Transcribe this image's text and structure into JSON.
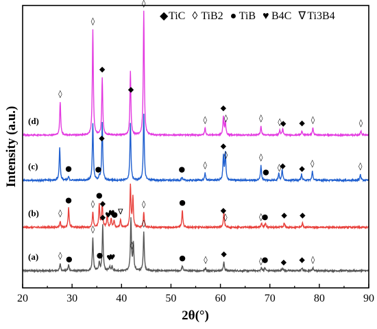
{
  "chart_data": {
    "type": "line",
    "xlabel": "2θ(°)",
    "ylabel": "Intensity (a.u.)",
    "xlim": [
      20,
      90
    ],
    "x_ticks": [
      "20",
      "30",
      "40",
      "50",
      "60",
      "70",
      "80",
      "90"
    ],
    "y_ticks_visible": false,
    "legend": {
      "placement": "top-right",
      "entries": [
        {
          "symbol": "◆",
          "label": "TiC",
          "phase": "tic"
        },
        {
          "symbol": "◊",
          "label": "TiB2",
          "phase": "tib2"
        },
        {
          "symbol": "●",
          "label": "TiB",
          "phase": "tib"
        },
        {
          "symbol": "♥",
          "label": "B4C",
          "phase": "b4c"
        },
        {
          "symbol": "∇",
          "label": "Ti3B4",
          "phase": "ti3b4"
        }
      ]
    },
    "series": [
      {
        "label": "(a)",
        "color": "#555555",
        "baseline": 0.0,
        "noise": 0.025,
        "peaks": [
          [
            27.6,
            0.12
          ],
          [
            29.3,
            0.1
          ],
          [
            34.2,
            0.55
          ],
          [
            35.5,
            0.15
          ],
          [
            36.2,
            0.75
          ],
          [
            37.6,
            0.07
          ],
          [
            38.1,
            0.08
          ],
          [
            41.9,
            0.85
          ],
          [
            42.4,
            0.45
          ],
          [
            44.5,
            0.65
          ],
          [
            52.3,
            0.08
          ],
          [
            57.0,
            0.05
          ],
          [
            60.7,
            0.15
          ],
          [
            68.3,
            0.05
          ],
          [
            69.0,
            0.05
          ],
          [
            72.6,
            0.05
          ],
          [
            76.5,
            0.05
          ],
          [
            78.7,
            0.05
          ]
        ],
        "markers": [
          [
            "tib2",
            27.6
          ],
          [
            "tib",
            29.4
          ],
          [
            "tib2",
            34.2
          ],
          [
            "tib",
            35.6
          ],
          [
            "tic",
            36.2
          ],
          [
            "b4c",
            37.6
          ],
          [
            "b4c",
            38.1
          ],
          [
            "tib2",
            42.1
          ],
          [
            "tib2",
            44.5
          ],
          [
            "tib",
            52.3
          ],
          [
            "tib2",
            57.0
          ],
          [
            "tic",
            60.7
          ],
          [
            "tib2",
            68.2
          ],
          [
            "tib",
            69.0
          ],
          [
            "tic",
            72.8
          ],
          [
            "tic",
            76.5
          ],
          [
            "tib2",
            78.7
          ]
        ]
      },
      {
        "label": "(b)",
        "color": "#e8413c",
        "baseline": 0.72,
        "noise": 0.025,
        "peaks": [
          [
            27.6,
            0.1
          ],
          [
            29.3,
            0.32
          ],
          [
            34.2,
            0.25
          ],
          [
            35.5,
            0.38
          ],
          [
            36.1,
            0.42
          ],
          [
            37.1,
            0.2
          ],
          [
            37.9,
            0.15
          ],
          [
            38.5,
            0.12
          ],
          [
            39.8,
            0.12
          ],
          [
            41.8,
            0.7
          ],
          [
            42.3,
            0.5
          ],
          [
            44.5,
            0.25
          ],
          [
            52.3,
            0.28
          ],
          [
            60.7,
            0.25
          ],
          [
            68.3,
            0.07
          ],
          [
            69.1,
            0.07
          ],
          [
            72.9,
            0.07
          ],
          [
            76.6,
            0.07
          ]
        ],
        "markers": [
          [
            "tib2",
            27.6
          ],
          [
            "tib",
            29.3
          ],
          [
            "tib2",
            34.2
          ],
          [
            "tib",
            35.5
          ],
          [
            "tic",
            36.2
          ],
          [
            "b4c",
            37.3
          ],
          [
            "b4c",
            38.0
          ],
          [
            "tib",
            38.6
          ],
          [
            "ti3b4",
            39.8
          ],
          [
            "tib2",
            44.5
          ],
          [
            "tib",
            52.3
          ],
          [
            "tic",
            60.6
          ],
          [
            "tib2",
            61.0
          ],
          [
            "tib2",
            68.2
          ],
          [
            "tib",
            69.0
          ],
          [
            "tic",
            72.9
          ],
          [
            "tic",
            76.6
          ]
        ]
      },
      {
        "label": "(c)",
        "color": "#1f5fcf",
        "baseline": 1.5,
        "noise": 0.025,
        "peaks": [
          [
            27.5,
            0.55
          ],
          [
            29.3,
            0.06
          ],
          [
            34.2,
            0.95
          ],
          [
            35.5,
            0.06
          ],
          [
            36.1,
            0.95
          ],
          [
            41.8,
            0.95
          ],
          [
            44.5,
            1.1
          ],
          [
            52.2,
            0.05
          ],
          [
            56.9,
            0.12
          ],
          [
            60.6,
            0.4
          ],
          [
            61.0,
            0.45
          ],
          [
            68.2,
            0.25
          ],
          [
            71.8,
            0.12
          ],
          [
            72.5,
            0.18
          ],
          [
            76.4,
            0.1
          ],
          [
            78.6,
            0.15
          ],
          [
            88.3,
            0.1
          ]
        ],
        "markers": [
          [
            "tib",
            29.3
          ],
          [
            "tib",
            35.3
          ],
          [
            "tic",
            36.0
          ],
          [
            "tib",
            52.2
          ],
          [
            "tib2",
            56.9
          ],
          [
            "tic",
            60.6
          ],
          [
            "tib2",
            61.1
          ],
          [
            "tib2",
            68.2
          ],
          [
            "tib",
            69.2
          ],
          [
            "tib2",
            71.9
          ],
          [
            "tic",
            72.6
          ],
          [
            "tic",
            76.5
          ],
          [
            "tib2",
            78.6
          ],
          [
            "tib2",
            88.3
          ]
        ]
      },
      {
        "label": "(d)",
        "color": "#e33ae0",
        "baseline": 2.25,
        "noise": 0.02,
        "peaks": [
          [
            27.6,
            0.55
          ],
          [
            34.2,
            1.75
          ],
          [
            36.1,
            0.95
          ],
          [
            41.8,
            1.05
          ],
          [
            44.5,
            2.05
          ],
          [
            56.9,
            0.12
          ],
          [
            60.6,
            0.3
          ],
          [
            61.0,
            0.22
          ],
          [
            68.2,
            0.15
          ],
          [
            72.0,
            0.08
          ],
          [
            72.6,
            0.1
          ],
          [
            76.5,
            0.07
          ],
          [
            78.7,
            0.12
          ],
          [
            88.4,
            0.07
          ]
        ],
        "markers": [
          [
            "tib2",
            27.6
          ],
          [
            "tib2",
            34.2
          ],
          [
            "tic",
            36.1
          ],
          [
            "tic",
            41.9
          ],
          [
            "tib2",
            44.5
          ],
          [
            "tib2",
            56.9
          ],
          [
            "tic",
            60.6
          ],
          [
            "tib2",
            61.1
          ],
          [
            "tib2",
            68.2
          ],
          [
            "tib2",
            72.0
          ],
          [
            "tic",
            72.7
          ],
          [
            "tic",
            76.5
          ],
          [
            "tib2",
            78.7
          ],
          [
            "tib2",
            88.4
          ]
        ]
      }
    ]
  }
}
